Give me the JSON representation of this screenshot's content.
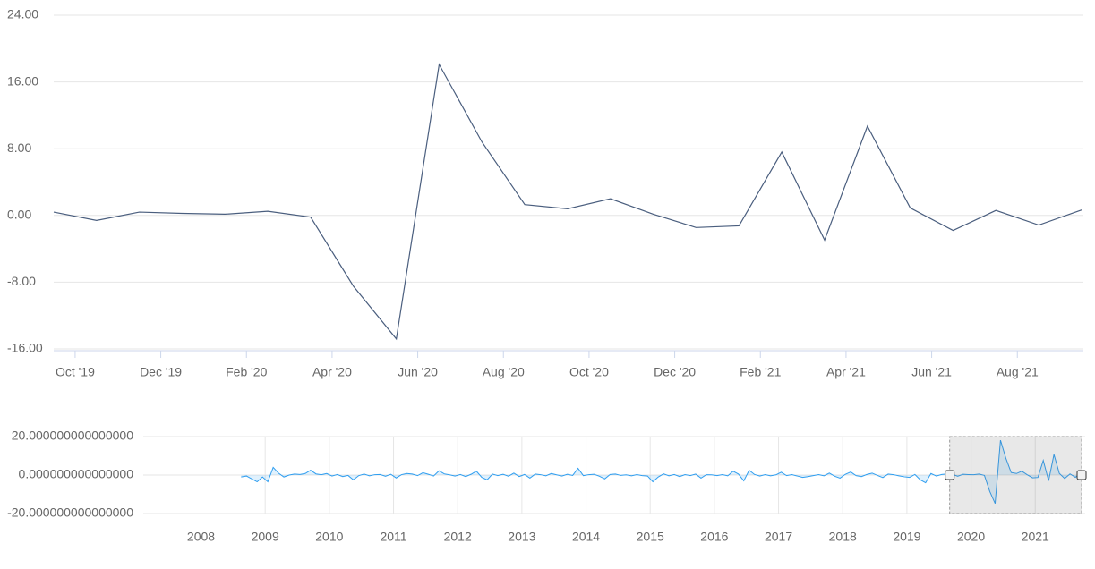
{
  "chart_data": [
    {
      "type": "line",
      "x": [
        "2019-09",
        "2019-10",
        "2019-11",
        "2019-12",
        "2020-01",
        "2020-02",
        "2020-03",
        "2020-04",
        "2020-05",
        "2020-06",
        "2020-07",
        "2020-08",
        "2020-09",
        "2020-10",
        "2020-11",
        "2020-12",
        "2021-01",
        "2021-02",
        "2021-03",
        "2021-04",
        "2021-05",
        "2021-06",
        "2021-07",
        "2021-08",
        "2021-09"
      ],
      "values": [
        0.4,
        -0.6,
        0.4,
        0.25,
        0.15,
        0.5,
        -0.2,
        -8.5,
        -14.8,
        18.1,
        8.8,
        1.3,
        0.8,
        2.0,
        0.15,
        -1.45,
        -1.25,
        7.6,
        -2.95,
        10.7,
        0.9,
        -1.8,
        0.6,
        -1.15,
        0.65
      ],
      "color": "#4a5e7e",
      "xlim": [
        "2019-09",
        "2021-09"
      ],
      "xticks": [
        {
          "value": "2019-10",
          "label": "Oct '19"
        },
        {
          "value": "2019-12",
          "label": "Dec '19"
        },
        {
          "value": "2020-02",
          "label": "Feb '20"
        },
        {
          "value": "2020-04",
          "label": "Apr '20"
        },
        {
          "value": "2020-06",
          "label": "Jun '20"
        },
        {
          "value": "2020-08",
          "label": "Aug '20"
        },
        {
          "value": "2020-10",
          "label": "Oct '20"
        },
        {
          "value": "2020-12",
          "label": "Dec '20"
        },
        {
          "value": "2021-02",
          "label": "Feb '21"
        },
        {
          "value": "2021-04",
          "label": "Apr '21"
        },
        {
          "value": "2021-06",
          "label": "Jun '21"
        },
        {
          "value": "2021-08",
          "label": "Aug '21"
        }
      ],
      "ylim": [
        -16,
        24
      ],
      "yticks": [
        {
          "value": -16,
          "label": "-16.00"
        },
        {
          "value": -8,
          "label": "-8.00"
        },
        {
          "value": 0,
          "label": "0.00"
        },
        {
          "value": 8,
          "label": "8.00"
        },
        {
          "value": 16,
          "label": "16.00"
        },
        {
          "value": 24,
          "label": "24.00"
        }
      ],
      "grid": true
    },
    {
      "type": "area",
      "x": [
        "2008-08",
        "2008-09",
        "2008-10",
        "2008-11",
        "2008-12",
        "2009-01",
        "2009-02",
        "2009-03",
        "2009-04",
        "2009-05",
        "2009-06",
        "2009-07",
        "2009-08",
        "2009-09",
        "2009-10",
        "2009-11",
        "2009-12",
        "2010-01",
        "2010-02",
        "2010-03",
        "2010-04",
        "2010-05",
        "2010-06",
        "2010-07",
        "2010-08",
        "2010-09",
        "2010-10",
        "2010-11",
        "2010-12",
        "2011-01",
        "2011-02",
        "2011-03",
        "2011-04",
        "2011-05",
        "2011-06",
        "2011-07",
        "2011-08",
        "2011-09",
        "2011-10",
        "2011-11",
        "2011-12",
        "2012-01",
        "2012-02",
        "2012-03",
        "2012-04",
        "2012-05",
        "2012-06",
        "2012-07",
        "2012-08",
        "2012-09",
        "2012-10",
        "2012-11",
        "2012-12",
        "2013-01",
        "2013-02",
        "2013-03",
        "2013-04",
        "2013-05",
        "2013-06",
        "2013-07",
        "2013-08",
        "2013-09",
        "2013-10",
        "2013-11",
        "2013-12",
        "2014-01",
        "2014-02",
        "2014-03",
        "2014-04",
        "2014-05",
        "2014-06",
        "2014-07",
        "2014-08",
        "2014-09",
        "2014-10",
        "2014-11",
        "2014-12",
        "2015-01",
        "2015-02",
        "2015-03",
        "2015-04",
        "2015-05",
        "2015-06",
        "2015-07",
        "2015-08",
        "2015-09",
        "2015-10",
        "2015-11",
        "2015-12",
        "2016-01",
        "2016-02",
        "2016-03",
        "2016-04",
        "2016-05",
        "2016-06",
        "2016-07",
        "2016-08",
        "2016-09",
        "2016-10",
        "2016-11",
        "2016-12",
        "2017-01",
        "2017-02",
        "2017-03",
        "2017-04",
        "2017-05",
        "2017-06",
        "2017-07",
        "2017-08",
        "2017-09",
        "2017-10",
        "2017-11",
        "2017-12",
        "2018-01",
        "2018-02",
        "2018-03",
        "2018-04",
        "2018-05",
        "2018-06",
        "2018-07",
        "2018-08",
        "2018-09",
        "2018-10",
        "2018-11",
        "2018-12",
        "2019-01",
        "2019-02",
        "2019-03",
        "2019-04",
        "2019-05",
        "2019-06",
        "2019-07",
        "2019-08",
        "2019-09",
        "2019-10",
        "2019-11",
        "2019-12",
        "2020-01",
        "2020-02",
        "2020-03",
        "2020-04",
        "2020-05",
        "2020-06",
        "2020-07",
        "2020-08",
        "2020-09",
        "2020-10",
        "2020-11",
        "2020-12",
        "2021-01",
        "2021-02",
        "2021-03",
        "2021-04",
        "2021-05",
        "2021-06",
        "2021-07",
        "2021-08",
        "2021-09"
      ],
      "values": [
        -1,
        -0.5,
        -2,
        -3.5,
        -1,
        -3.5,
        4,
        1,
        -1,
        0,
        0.5,
        0.3,
        0.8,
        2.5,
        0.6,
        0.2,
        0.8,
        -0.5,
        0.3,
        -0.8,
        -0.2,
        -2.5,
        -0.3,
        0.5,
        -0.4,
        0.2,
        0.3,
        -0.6,
        0.4,
        -1.5,
        0.2,
        0.8,
        0.5,
        -0.3,
        1.2,
        0.4,
        -0.5,
        2.2,
        0.6,
        0.1,
        -0.5,
        0.3,
        -0.8,
        0.4,
        2.0,
        -1.2,
        -2.5,
        0.5,
        -0.3,
        0.4,
        -0.6,
        1.0,
        -0.8,
        0.3,
        -1.6,
        0.5,
        0.2,
        -0.4,
        0.8,
        0.1,
        -0.5,
        0.4,
        -0.2,
        3.5,
        -0.3,
        0.2,
        0.4,
        -0.6,
        -2.0,
        0.3,
        0.5,
        -0.2,
        0.1,
        -0.4,
        0.2,
        -0.3,
        -0.5,
        -3.5,
        -1.0,
        0.6,
        -0.4,
        0.3,
        -0.8,
        0.2,
        -0.3,
        0.5,
        -1.6,
        0.2,
        0.1,
        -0.3,
        0.2,
        -0.4,
        2.0,
        0.5,
        -3.0,
        2.5,
        0.3,
        -0.5,
        0.2,
        -0.4,
        0.1,
        1.5,
        -0.3,
        0.2,
        -0.5,
        -1.2,
        -0.8,
        -0.3,
        0.2,
        -0.4,
        1.0,
        -0.6,
        -1.6,
        0.4,
        1.6,
        -0.3,
        -0.8,
        0.3,
        1.0,
        -0.2,
        -1.3,
        0.5,
        0.2,
        -0.4,
        -0.9,
        -1.2,
        0.3,
        -2.5,
        -4.0,
        0.8,
        -0.5,
        0.3,
        0.6,
        0.4,
        -0.6,
        0.4,
        0.25,
        0.15,
        0.5,
        -0.2,
        -8.5,
        -14.8,
        18.1,
        8.8,
        1.3,
        0.8,
        2.0,
        0.15,
        -1.45,
        -1.25,
        7.6,
        -2.95,
        10.7,
        0.9,
        -1.8,
        0.6,
        -1.15,
        0.65
      ],
      "color": "#2f9ef0",
      "xlim": [
        2007.1,
        2021.75
      ],
      "xticks": [
        2008,
        2009,
        2010,
        2011,
        2012,
        2013,
        2014,
        2015,
        2016,
        2017,
        2018,
        2019,
        2020,
        2021
      ],
      "ylim": [
        -20,
        20
      ],
      "yticks": [
        {
          "value": -20,
          "label": "-20.000000000000000"
        },
        {
          "value": 0,
          "label": "0.000000000000000"
        },
        {
          "value": 20,
          "label": "20.000000000000000"
        }
      ],
      "grid": true
    }
  ]
}
